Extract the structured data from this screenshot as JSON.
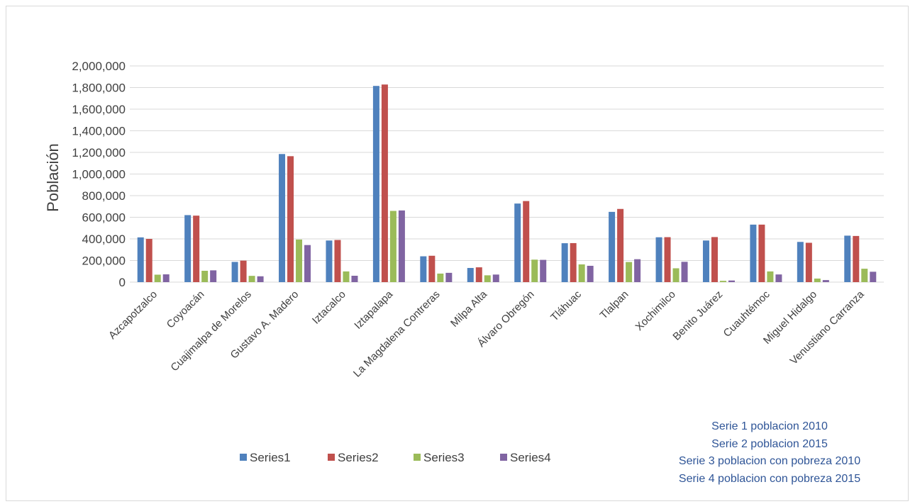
{
  "chart_data": {
    "type": "bar",
    "title": "",
    "xlabel": "",
    "ylabel": "Población",
    "ylim": [
      0,
      2000000
    ],
    "yticks": [
      0,
      200000,
      400000,
      600000,
      800000,
      1000000,
      1200000,
      1400000,
      1600000,
      1800000,
      2000000
    ],
    "ytick_labels": [
      "0",
      "200,000",
      "400,000",
      "600,000",
      "800,000",
      "1,000,000",
      "1,200,000",
      "1,400,000",
      "1,600,000",
      "1,800,000",
      "2,000,000"
    ],
    "grid": true,
    "legend_position": "bottom",
    "categories": [
      "Azcapotzalco",
      "Coyoacán",
      "Cuajimalpa de Morelos",
      "Gustavo A. Madero",
      "Iztacalco",
      "Iztapalapa",
      "La Magdalena Contreras",
      "Milpa Alta",
      "Álvaro Obregón",
      "Tláhuac",
      "Tlalpan",
      "Xochimilco",
      "Benito Juárez",
      "Cuauhtémoc",
      "Miguel Hidalgo",
      "Venustiano Carranza"
    ],
    "series": [
      {
        "name": "Series1",
        "color": "#4f81bd",
        "values": [
          414000,
          620000,
          187000,
          1185000,
          385000,
          1815000,
          239000,
          131000,
          727000,
          360000,
          650000,
          415000,
          385000,
          532000,
          372000,
          430000
        ]
      },
      {
        "name": "Series2",
        "color": "#c0504d",
        "values": [
          400000,
          615000,
          199000,
          1165000,
          390000,
          1828000,
          244000,
          137000,
          750000,
          361000,
          677000,
          416000,
          417000,
          532000,
          364000,
          427000
        ]
      },
      {
        "name": "Series3",
        "color": "#9bbb59",
        "values": [
          69000,
          105000,
          58000,
          394000,
          99000,
          659000,
          79000,
          63000,
          208000,
          164000,
          186000,
          128000,
          12000,
          99000,
          33000,
          124000
        ]
      },
      {
        "name": "Series4",
        "color": "#8064a2",
        "values": [
          72000,
          109000,
          54000,
          343000,
          59000,
          663000,
          86000,
          70000,
          206000,
          151000,
          212000,
          188000,
          15000,
          71000,
          19000,
          96000
        ]
      }
    ],
    "notes": [
      "Serie 1 poblacion 2010",
      "Serie 2 poblacion 2015",
      "Serie 3 poblacion con pobreza 2010",
      "Serie 4 poblacion con pobreza 2015"
    ],
    "notes_color": "#2f5597",
    "grid_color": "#d9d9d9",
    "text_color": "#404040"
  }
}
